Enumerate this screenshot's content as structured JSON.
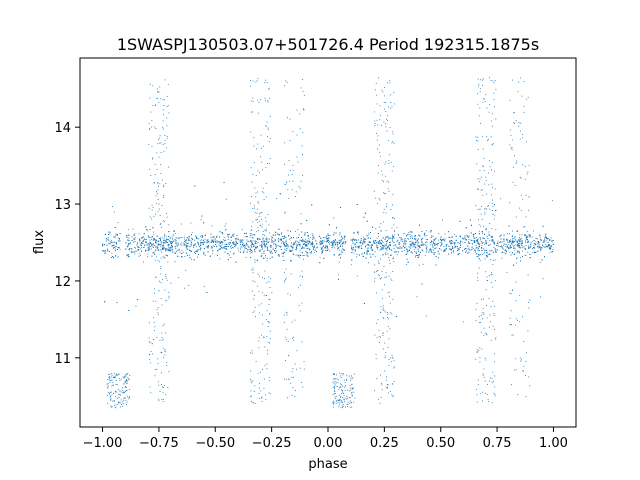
{
  "chart_data": {
    "type": "scatter",
    "title": "1SWASPJ130503.07+501726.4 Period 192315.1875s",
    "xlabel": "phase",
    "ylabel": "flux",
    "xlim": [
      -1.1,
      1.1
    ],
    "ylim": [
      10.1,
      14.9
    ],
    "x_ticks": [
      -1.0,
      -0.75,
      -0.5,
      -0.25,
      0.0,
      0.25,
      0.5,
      0.75,
      1.0
    ],
    "x_tick_labels": [
      "−1.00",
      "−0.75",
      "−0.50",
      "−0.25",
      "0.00",
      "0.25",
      "0.50",
      "0.75",
      "1.00"
    ],
    "y_ticks": [
      11,
      12,
      13,
      14
    ],
    "y_tick_labels": [
      "11",
      "12",
      "13",
      "14"
    ],
    "grid": false,
    "marker_color": "#1f77b4",
    "series": [
      {
        "x_range": [
          -1.0,
          1.0
        ],
        "baseline_flux": 12.48,
        "baseline_spread": 0.13,
        "gaps_at_phase": [
          -0.91,
          0.09
        ],
        "eclipse_points": [
          {
            "phase_range": [
              -0.98,
              -0.88
            ],
            "flux_range": [
              10.35,
              10.8
            ]
          },
          {
            "phase_range": [
              0.02,
              0.12
            ],
            "flux_range": [
              10.35,
              10.8
            ]
          }
        ],
        "outlier_streaks_phase": [
          -0.75,
          -0.3,
          0.25,
          0.7,
          0.85
        ],
        "flux_max_shown": 14.65
      }
    ]
  }
}
